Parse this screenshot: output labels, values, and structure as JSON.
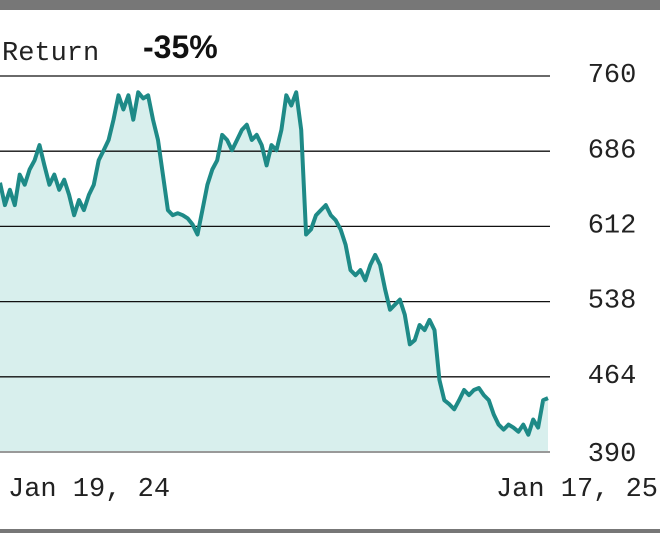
{
  "chart_data": {
    "type": "area",
    "title": "Return",
    "annotation": "-35%",
    "color": "#1e8a87",
    "fill": "#d8efed",
    "grid": true,
    "ylim": [
      390,
      760
    ],
    "yticks": [
      390,
      464,
      538,
      612,
      686,
      760
    ],
    "categories": [
      "Jan 19, 24",
      null,
      null,
      null,
      null,
      null,
      null,
      null,
      null,
      null,
      null,
      null,
      null,
      null,
      null,
      null,
      null,
      null,
      null,
      null,
      null,
      null,
      null,
      null,
      null,
      null,
      null,
      null,
      null,
      null,
      null,
      null,
      null,
      null,
      null,
      null,
      null,
      null,
      null,
      null,
      null,
      null,
      null,
      null,
      null,
      null,
      null,
      null,
      null,
      null,
      null,
      null,
      null,
      null,
      null,
      null,
      null,
      null,
      null,
      null,
      null,
      null,
      null,
      null,
      null,
      null,
      null,
      null,
      null,
      null,
      null,
      null,
      null,
      null,
      null,
      null,
      null,
      null,
      null,
      null,
      null,
      null,
      null,
      null,
      null,
      null,
      null,
      null,
      null,
      null,
      null,
      null,
      null,
      null,
      null,
      null,
      null,
      null,
      null,
      null,
      null,
      null,
      null,
      null,
      null,
      null,
      null,
      null,
      null,
      null,
      null,
      "Jan 17, 25"
    ],
    "values": [
      655,
      633,
      648,
      633,
      663,
      653,
      668,
      677,
      692,
      672,
      653,
      663,
      648,
      658,
      643,
      623,
      638,
      628,
      643,
      653,
      677,
      687,
      697,
      717,
      741,
      727,
      741,
      717,
      744,
      738,
      741,
      717,
      697,
      663,
      628,
      623,
      625,
      623,
      620,
      614,
      604,
      628,
      653,
      668,
      677,
      702,
      697,
      687,
      697,
      707,
      712,
      697,
      702,
      692,
      672,
      692,
      687,
      707,
      741,
      731,
      744,
      707,
      604,
      609,
      623,
      628,
      633,
      623,
      618,
      609,
      594,
      569,
      564,
      569,
      559,
      574,
      584,
      574,
      550,
      530,
      535,
      540,
      525,
      496,
      500,
      515,
      510,
      520,
      510,
      461,
      441,
      437,
      432,
      441,
      451,
      446,
      451,
      453,
      446,
      441,
      427,
      417,
      412,
      417,
      414,
      410,
      417,
      407,
      422,
      414,
      441,
      443
    ]
  }
}
